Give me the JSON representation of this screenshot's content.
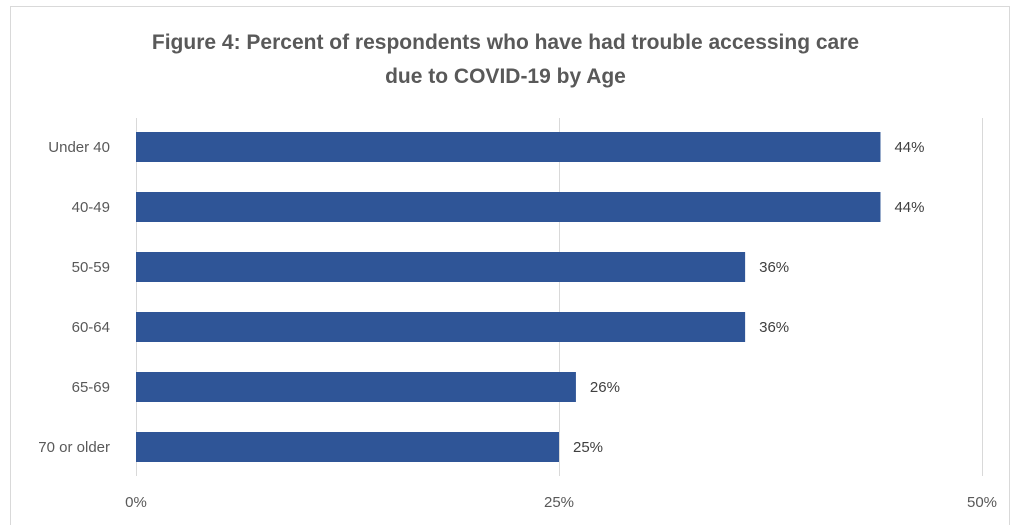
{
  "title_line1": "Figure 4: Percent of respondents who have had trouble accessing care",
  "title_line2": "due to COVID-19 by Age",
  "chart_data": {
    "type": "bar",
    "orientation": "horizontal",
    "title": "Figure 4: Percent of respondents who have had trouble accessing care due to COVID-19 by Age",
    "categories": [
      "Under 40",
      "40-49",
      "50-59",
      "60-64",
      "65-69",
      "70 or older"
    ],
    "values": [
      44,
      44,
      36,
      36,
      26,
      25
    ],
    "data_labels": [
      "44%",
      "44%",
      "36%",
      "36%",
      "26%",
      "25%"
    ],
    "xlim": [
      0,
      50
    ],
    "x_ticks": [
      0,
      25,
      50
    ],
    "x_tick_labels": [
      "0%",
      "25%",
      "50%"
    ],
    "grid": true,
    "legend": "none",
    "bar_color": "#2F5597",
    "grid_color": "#d9d9d9"
  }
}
